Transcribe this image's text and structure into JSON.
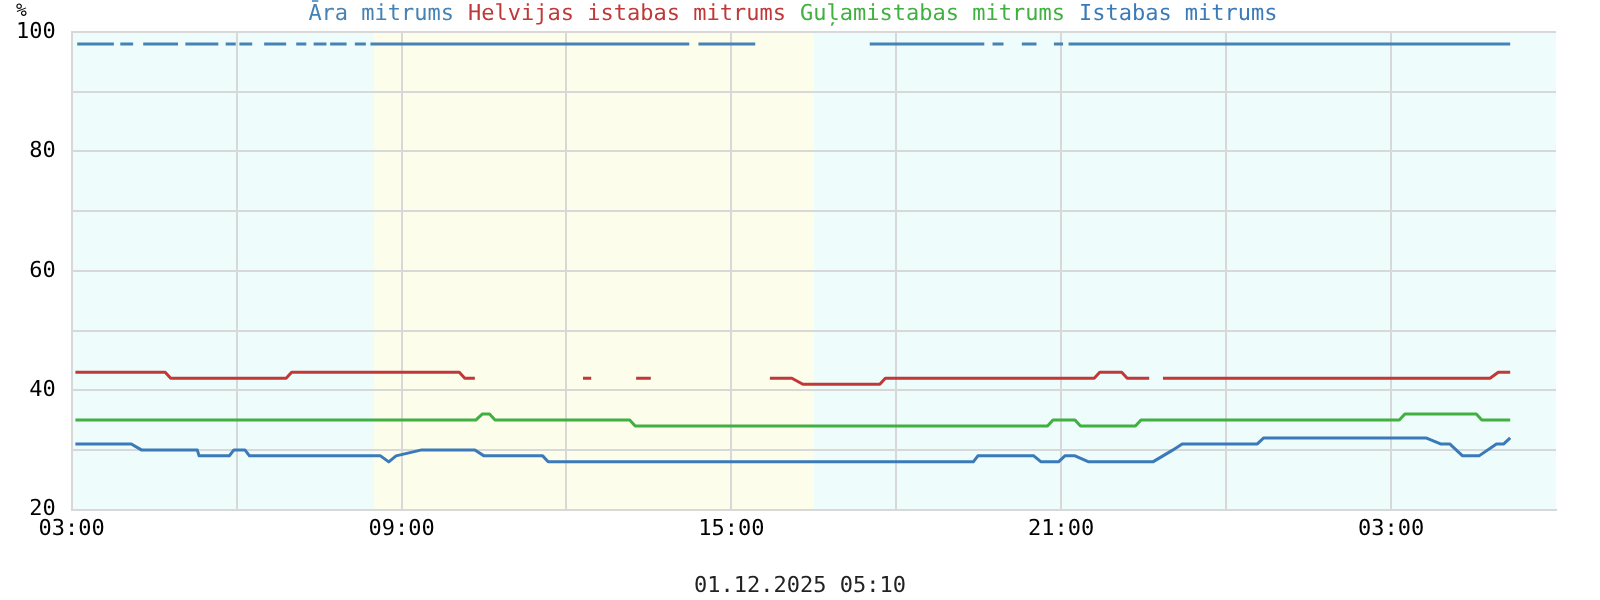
{
  "chart_data": {
    "type": "line",
    "ylabel": "%",
    "annotations": [
      "01.12.2025 05:10"
    ],
    "xlim": [
      "2025-11-30T03:00",
      "2025-12-01T06:00"
    ],
    "xticks": [
      {
        "value": "2025-11-30T03:00",
        "label": "03:00"
      },
      {
        "value": "2025-11-30T06:00",
        "label": null
      },
      {
        "value": "2025-11-30T09:00",
        "label": "09:00"
      },
      {
        "value": "2025-11-30T12:00",
        "label": null
      },
      {
        "value": "2025-11-30T15:00",
        "label": "15:00"
      },
      {
        "value": "2025-11-30T18:00",
        "label": null
      },
      {
        "value": "2025-11-30T21:00",
        "label": "21:00"
      },
      {
        "value": "2025-12-01T00:00",
        "label": null
      },
      {
        "value": "2025-12-01T03:00",
        "label": "03:00"
      }
    ],
    "ylim": [
      20,
      100
    ],
    "yticks": [
      20,
      {
        "value": 30,
        "label": null
      },
      40,
      {
        "value": 50,
        "label": null
      },
      60,
      {
        "value": 70,
        "label": null
      },
      80,
      {
        "value": 90,
        "label": null
      },
      100
    ],
    "grid": true,
    "legend": "top",
    "marker": "none",
    "line_style": "solid",
    "bands": [
      {
        "axis": "x",
        "from": "2025-11-30T03:00",
        "to": "2025-11-30T08:30",
        "color": "#eefcfc"
      },
      {
        "axis": "x",
        "from": "2025-11-30T08:30",
        "to": "2025-11-30T16:30",
        "color": "#fdfdec"
      },
      {
        "axis": "x",
        "from": "2025-11-30T16:30",
        "to": "2025-12-01T06:00",
        "color": "#eefcfc"
      }
    ],
    "series": [
      {
        "name": "Āra mitrums",
        "color": "#4682b4",
        "x": [
          "2025-11-30T03:06",
          "2025-11-30T03:46",
          "2025-11-30T03:50",
          "2025-11-30T03:53",
          "2025-11-30T04:07",
          "2025-11-30T04:12",
          "2025-11-30T04:18",
          "2025-11-30T04:56",
          "2025-11-30T05:00",
          "2025-11-30T05:04",
          "2025-11-30T05:40",
          "2025-11-30T05:45",
          "2025-11-30T05:48",
          "2025-11-30T05:59",
          "2025-11-30T06:01",
          "2025-11-30T06:03",
          "2025-11-30T06:17",
          "2025-11-30T06:24",
          "2025-11-30T06:30",
          "2025-11-30T06:54",
          "2025-11-30T07:00",
          "2025-11-30T07:05",
          "2025-11-30T07:16",
          "2025-11-30T07:20",
          "2025-11-30T07:24",
          "2025-11-30T07:38",
          "2025-11-30T07:40",
          "2025-11-30T07:42",
          "2025-11-30T08:00",
          "2025-11-30T08:05",
          "2025-11-30T08:09",
          "2025-11-30T08:21",
          "2025-11-30T08:24",
          "2025-11-30T08:26",
          "2025-11-30T14:14",
          "2025-11-30T14:19",
          "2025-11-30T14:24",
          "2025-11-30T15:26",
          "2025-11-30T16:30",
          "2025-11-30T17:31",
          "2025-11-30T19:36",
          "2025-11-30T19:40",
          "2025-11-30T19:45",
          "2025-11-30T19:57",
          "2025-11-30T20:10",
          "2025-11-30T20:17",
          "2025-11-30T20:33",
          "2025-11-30T20:40",
          "2025-11-30T20:52",
          "2025-11-30T21:02",
          "2025-11-30T21:04",
          "2025-11-30T21:08",
          "2025-12-01T05:10"
        ],
        "values": [
          98,
          98,
          null,
          98,
          98,
          null,
          98,
          98,
          null,
          98,
          98,
          null,
          98,
          98,
          null,
          98,
          98,
          null,
          98,
          98,
          null,
          98,
          98,
          null,
          98,
          98,
          null,
          98,
          98,
          null,
          98,
          98,
          null,
          98,
          98,
          null,
          98,
          98,
          null,
          98,
          98,
          null,
          98,
          98,
          null,
          98,
          98,
          null,
          98,
          98,
          null,
          98,
          98
        ]
      },
      {
        "name": "Helvijas istabas mitrums",
        "color": "#c03838",
        "x": [
          "2025-11-30T03:04",
          "2025-11-30T04:42",
          "2025-11-30T04:48",
          "2025-11-30T06:54",
          "2025-11-30T07:00",
          "2025-11-30T10:03",
          "2025-11-30T10:09",
          "2025-11-30T10:20",
          "2025-11-30T10:24",
          "2025-11-30T12:18",
          "2025-11-30T12:27",
          "2025-11-30T12:36",
          "2025-11-30T13:16",
          "2025-11-30T13:32",
          "2025-11-30T13:36",
          "2025-11-30T15:42",
          "2025-11-30T16:00",
          "2025-11-30T16:06",
          "2025-11-30T16:18",
          "2025-11-30T17:42",
          "2025-11-30T17:48",
          "2025-11-30T21:36",
          "2025-11-30T21:42",
          "2025-11-30T22:06",
          "2025-11-30T22:12",
          "2025-11-30T22:36",
          "2025-11-30T22:42",
          "2025-11-30T22:51",
          "2025-12-01T04:48",
          "2025-12-01T04:57",
          "2025-12-01T05:10"
        ],
        "values": [
          43,
          43,
          42,
          42,
          43,
          43,
          42,
          42,
          null,
          42,
          42,
          null,
          42,
          42,
          null,
          42,
          42,
          42,
          41,
          41,
          42,
          42,
          43,
          43,
          42,
          42,
          null,
          42,
          42,
          43,
          43
        ]
      },
      {
        "name": "Guļamistabas mitrums",
        "color": "#40b040",
        "x": [
          "2025-11-30T03:04",
          "2025-11-30T10:21",
          "2025-11-30T10:28",
          "2025-11-30T10:36",
          "2025-11-30T10:42",
          "2025-11-30T13:09",
          "2025-11-30T13:15",
          "2025-11-30T20:45",
          "2025-11-30T20:51",
          "2025-11-30T21:15",
          "2025-11-30T21:21",
          "2025-11-30T22:21",
          "2025-11-30T22:27",
          "2025-12-01T03:09",
          "2025-12-01T03:15",
          "2025-12-01T04:33",
          "2025-12-01T04:39",
          "2025-12-01T05:10"
        ],
        "values": [
          35,
          35,
          36,
          36,
          35,
          35,
          34,
          34,
          35,
          35,
          34,
          34,
          35,
          35,
          36,
          36,
          35,
          35
        ]
      },
      {
        "name": "Istabas mitrums",
        "color": "#3a7ab8",
        "x": [
          "2025-11-30T03:04",
          "2025-11-30T04:05",
          "2025-11-30T04:16",
          "2025-11-30T05:17",
          "2025-11-30T05:19",
          "2025-11-30T05:52",
          "2025-11-30T05:57",
          "2025-11-30T06:09",
          "2025-11-30T06:14",
          "2025-11-30T08:37",
          "2025-11-30T08:46",
          "2025-11-30T08:54",
          "2025-11-30T09:22",
          "2025-11-30T10:20",
          "2025-11-30T10:30",
          "2025-11-30T11:34",
          "2025-11-30T11:40",
          "2025-11-30T19:24",
          "2025-11-30T19:29",
          "2025-11-30T20:30",
          "2025-11-30T20:38",
          "2025-11-30T20:57",
          "2025-11-30T21:04",
          "2025-11-30T21:15",
          "2025-11-30T21:30",
          "2025-11-30T22:40",
          "2025-11-30T22:51",
          "2025-11-30T23:02",
          "2025-11-30T23:12",
          "2025-12-01T00:34",
          "2025-12-01T00:41",
          "2025-12-01T03:38",
          "2025-12-01T03:54",
          "2025-12-01T04:04",
          "2025-12-01T04:18",
          "2025-12-01T04:36",
          "2025-12-01T04:55",
          "2025-12-01T05:03",
          "2025-12-01T05:10"
        ],
        "values": [
          31,
          31,
          30,
          30,
          29,
          29,
          30,
          30,
          29,
          29,
          28,
          29,
          30,
          30,
          29,
          29,
          28,
          28,
          29,
          29,
          28,
          28,
          29,
          29,
          28,
          28,
          29,
          30,
          31,
          31,
          32,
          32,
          31,
          31,
          29,
          29,
          31,
          31,
          32
        ]
      }
    ]
  }
}
